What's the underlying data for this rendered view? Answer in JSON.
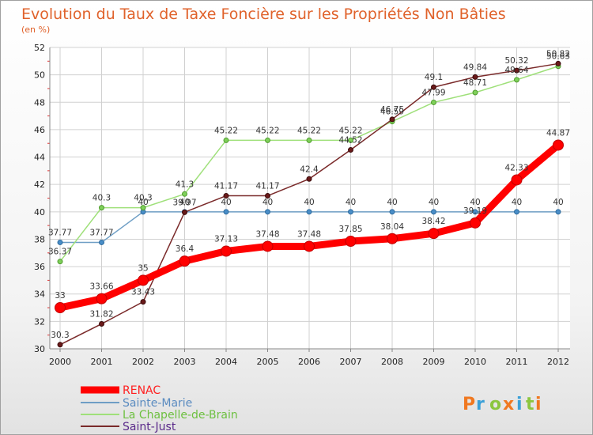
{
  "title": "Evolution du Taux de Taxe Foncière sur les Propriétés Non Bâties",
  "subtitle": "(en %)",
  "logo_text": "Proxiti",
  "chart_data": {
    "type": "line",
    "title": "Evolution du Taux de Taxe Foncière sur les Propriétés Non Bâties",
    "ylabel": "(en %)",
    "xlabel": "",
    "x": [
      "2000",
      "2001",
      "2002",
      "2003",
      "2004",
      "2005",
      "2006",
      "2007",
      "2008",
      "2009",
      "2010",
      "2011",
      "2012"
    ],
    "ylim": [
      30,
      52
    ],
    "yticks": [
      30,
      32,
      34,
      36,
      38,
      40,
      42,
      44,
      46,
      48,
      50,
      52
    ],
    "grid": true,
    "legend_position": "bottom-left",
    "series": [
      {
        "name": "RENAC",
        "color": "#ff0000",
        "values": [
          33,
          33.66,
          35,
          36.4,
          37.13,
          37.48,
          37.48,
          37.85,
          38.04,
          38.42,
          39.19,
          42.33,
          44.87
        ]
      },
      {
        "name": "Sainte-Marie",
        "color": "#6e9ec5",
        "values": [
          37.77,
          37.77,
          40,
          40,
          40,
          40,
          40,
          40,
          40,
          40,
          40,
          40,
          40
        ]
      },
      {
        "name": "La Chapelle-de-Brain",
        "color": "#9fe07a",
        "values": [
          36.37,
          40.3,
          40.3,
          41.3,
          45.22,
          45.22,
          45.22,
          45.22,
          46.59,
          47.99,
          48.71,
          49.64,
          50.63
        ]
      },
      {
        "name": "Saint-Just",
        "color": "#7a2a2a",
        "values": [
          30.3,
          31.82,
          33.43,
          39.97,
          41.17,
          41.17,
          42.4,
          44.52,
          46.75,
          49.1,
          49.84,
          50.32,
          50.82
        ]
      }
    ]
  }
}
